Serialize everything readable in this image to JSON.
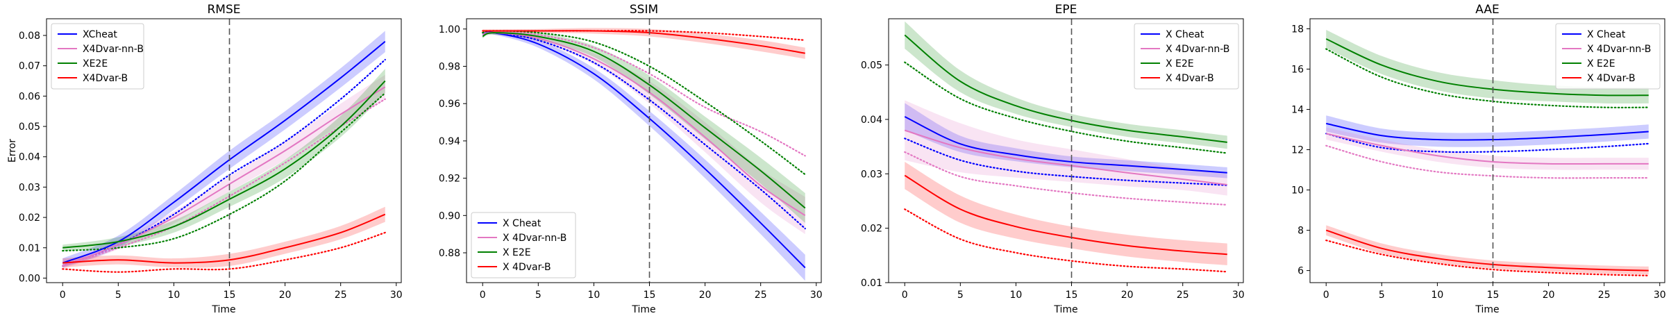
{
  "chart_data": [
    {
      "type": "line",
      "title": "RMSE",
      "xlabel": "Time",
      "ylabel": "Error",
      "xlim": [
        -1.45,
        30.45
      ],
      "ylim": [
        -0.0015,
        0.0855
      ],
      "xticks": [
        0,
        5,
        10,
        15,
        20,
        25,
        30
      ],
      "yticks": [
        0.0,
        0.01,
        0.02,
        0.03,
        0.04,
        0.05,
        0.06,
        0.07,
        0.08
      ],
      "tick_decimals": 2,
      "vline": 15,
      "legend_position": "upper-left",
      "x": [
        0,
        5,
        10,
        15,
        20,
        25,
        29
      ],
      "series": [
        {
          "name": "XCheat",
          "color": "#0000ff",
          "values": [
            0.005,
            0.012,
            0.025,
            0.039,
            0.052,
            0.066,
            0.078
          ],
          "band": [
            0.0015,
            0.002,
            0.0025,
            0.003,
            0.003,
            0.0032,
            0.0035
          ],
          "dotted": [
            0.004,
            0.011,
            0.021,
            0.034,
            0.045,
            0.059,
            0.072
          ]
        },
        {
          "name": "X4Dvar-nn-B",
          "color": "#e377c2",
          "values": [
            0.004,
            0.011,
            0.02,
            0.031,
            0.042,
            0.054,
            0.063
          ],
          "band": [
            0.001,
            0.0015,
            0.002,
            0.0025,
            0.003,
            0.0035,
            0.004
          ],
          "dotted": [
            0.004,
            0.01,
            0.017,
            0.027,
            0.038,
            0.05,
            0.059
          ]
        },
        {
          "name": "XE2E",
          "color": "#008000",
          "values": [
            0.01,
            0.012,
            0.017,
            0.026,
            0.036,
            0.05,
            0.065
          ],
          "band": [
            0.001,
            0.0015,
            0.002,
            0.0025,
            0.003,
            0.0035,
            0.004
          ],
          "dotted": [
            0.009,
            0.01,
            0.013,
            0.021,
            0.032,
            0.048,
            0.061
          ]
        },
        {
          "name": "X4Dvar-B",
          "color": "#ff0000",
          "values": [
            0.005,
            0.006,
            0.005,
            0.006,
            0.01,
            0.015,
            0.021
          ],
          "band": [
            0.0015,
            0.0015,
            0.0015,
            0.002,
            0.002,
            0.0022,
            0.0025
          ],
          "dotted": [
            0.003,
            0.002,
            0.003,
            0.003,
            0.006,
            0.01,
            0.015
          ]
        }
      ]
    },
    {
      "type": "line",
      "title": "SSIM",
      "xlabel": "Time",
      "ylabel": "",
      "xlim": [
        -1.45,
        30.45
      ],
      "ylim": [
        0.864,
        1.0055
      ],
      "xticks": [
        0,
        5,
        10,
        15,
        20,
        25,
        30
      ],
      "yticks": [
        0.88,
        0.9,
        0.92,
        0.94,
        0.96,
        0.98,
        1.0
      ],
      "tick_decimals": 2,
      "vline": 15,
      "legend_position": "lower-left",
      "x": [
        0,
        1,
        5,
        10,
        15,
        20,
        25,
        29
      ],
      "series": [
        {
          "name": "X Cheat",
          "color": "#0000ff",
          "values": [
            0.997,
            0.998,
            0.992,
            0.976,
            0.952,
            0.925,
            0.896,
            0.872
          ],
          "band": [
            0.001,
            0.001,
            0.002,
            0.003,
            0.004,
            0.005,
            0.006,
            0.007
          ],
          "dotted": [
            0.998,
            0.998,
            0.994,
            0.982,
            0.962,
            0.938,
            0.914,
            0.893
          ]
        },
        {
          "name": "X 4Dvar-nn-B",
          "color": "#e377c2",
          "values": [
            0.997,
            0.998,
            0.995,
            0.984,
            0.966,
            0.942,
            0.916,
            0.9
          ],
          "band": [
            0.001,
            0.001,
            0.002,
            0.003,
            0.006,
            0.008,
            0.009,
            0.01
          ],
          "dotted": [
            0.998,
            0.999,
            0.997,
            0.99,
            0.976,
            0.958,
            0.945,
            0.932
          ]
        },
        {
          "name": "X E2E",
          "color": "#008000",
          "values": [
            0.996,
            0.998,
            0.996,
            0.988,
            0.97,
            0.947,
            0.924,
            0.904
          ],
          "band": [
            0.001,
            0.001,
            0.002,
            0.003,
            0.005,
            0.006,
            0.007,
            0.008
          ],
          "dotted": [
            0.998,
            0.999,
            0.998,
            0.993,
            0.98,
            0.961,
            0.94,
            0.922
          ]
        },
        {
          "name": "X 4Dvar-B",
          "color": "#ff0000",
          "values": [
            0.999,
            0.999,
            0.999,
            0.999,
            0.998,
            0.995,
            0.991,
            0.987
          ],
          "band": [
            0.0008,
            0.0008,
            0.001,
            0.0015,
            0.002,
            0.0025,
            0.003,
            0.003
          ],
          "dotted": [
            0.999,
            0.999,
            0.999,
            0.999,
            0.999,
            0.998,
            0.996,
            0.994
          ]
        }
      ]
    },
    {
      "type": "line",
      "title": "EPE",
      "xlabel": "Time",
      "ylabel": "",
      "xlim": [
        -1.45,
        30.45
      ],
      "ylim": [
        0.01,
        0.0585
      ],
      "xticks": [
        0,
        5,
        10,
        15,
        20,
        25,
        30
      ],
      "yticks": [
        0.01,
        0.02,
        0.03,
        0.04,
        0.05
      ],
      "tick_decimals": 2,
      "vline": 15,
      "legend_position": "upper-right",
      "x": [
        0,
        5,
        10,
        15,
        20,
        25,
        29
      ],
      "series": [
        {
          "name": "X Cheat",
          "color": "#0000ff",
          "values": [
            0.0405,
            0.0355,
            0.0335,
            0.0322,
            0.0315,
            0.0308,
            0.0302
          ],
          "band": [
            0.0025,
            0.0015,
            0.0012,
            0.001,
            0.001,
            0.001,
            0.001
          ],
          "dotted": [
            0.0365,
            0.0325,
            0.0305,
            0.0295,
            0.0288,
            0.0283,
            0.0279
          ]
        },
        {
          "name": "X 4Dvar-nn-B",
          "color": "#e377c2",
          "values": [
            0.038,
            0.0348,
            0.0328,
            0.0315,
            0.0302,
            0.029,
            0.028
          ],
          "band": [
            0.0055,
            0.0045,
            0.0035,
            0.003,
            0.0025,
            0.002,
            0.002
          ],
          "dotted": [
            0.034,
            0.0295,
            0.0278,
            0.0265,
            0.0255,
            0.0248,
            0.0243
          ]
        },
        {
          "name": "X E2E",
          "color": "#008000",
          "values": [
            0.0555,
            0.047,
            0.0425,
            0.0398,
            0.038,
            0.0368,
            0.0358
          ],
          "band": [
            0.0025,
            0.002,
            0.0015,
            0.0012,
            0.0012,
            0.0012,
            0.0012
          ],
          "dotted": [
            0.0505,
            0.0438,
            0.0402,
            0.0378,
            0.036,
            0.0348,
            0.0338
          ]
        },
        {
          "name": "X 4Dvar-B",
          "color": "#ff0000",
          "values": [
            0.0297,
            0.0235,
            0.0203,
            0.0183,
            0.0168,
            0.0158,
            0.0152
          ],
          "band": [
            0.0025,
            0.0025,
            0.0022,
            0.002,
            0.002,
            0.002,
            0.002
          ],
          "dotted": [
            0.0235,
            0.018,
            0.0155,
            0.014,
            0.013,
            0.0125,
            0.012
          ]
        }
      ]
    },
    {
      "type": "line",
      "title": "AAE",
      "xlabel": "Time",
      "ylabel": "",
      "xlim": [
        -1.45,
        30.45
      ],
      "ylim": [
        5.4,
        18.5
      ],
      "xticks": [
        0,
        5,
        10,
        15,
        20,
        25,
        30
      ],
      "yticks": [
        6,
        8,
        10,
        12,
        14,
        16,
        18
      ],
      "tick_decimals": 0,
      "vline": 15,
      "legend_position": "upper-right",
      "x": [
        0,
        5,
        10,
        15,
        20,
        25,
        29
      ],
      "series": [
        {
          "name": "X Cheat",
          "color": "#0000ff",
          "values": [
            13.3,
            12.7,
            12.5,
            12.5,
            12.6,
            12.75,
            12.9
          ],
          "band": [
            0.4,
            0.35,
            0.35,
            0.35,
            0.35,
            0.35,
            0.35
          ],
          "dotted": [
            12.8,
            12.1,
            11.9,
            11.9,
            12.0,
            12.15,
            12.3
          ]
        },
        {
          "name": "X 4Dvar-nn-B",
          "color": "#e377c2",
          "values": [
            12.8,
            12.2,
            11.7,
            11.4,
            11.3,
            11.3,
            11.3
          ],
          "band": [
            0.3,
            0.3,
            0.3,
            0.3,
            0.3,
            0.3,
            0.3
          ],
          "dotted": [
            12.2,
            11.4,
            10.9,
            10.7,
            10.6,
            10.6,
            10.6
          ]
        },
        {
          "name": "X E2E",
          "color": "#008000",
          "values": [
            17.5,
            16.2,
            15.4,
            15.0,
            14.8,
            14.7,
            14.7
          ],
          "band": [
            0.45,
            0.45,
            0.45,
            0.45,
            0.4,
            0.4,
            0.4
          ],
          "dotted": [
            17.0,
            15.6,
            14.8,
            14.4,
            14.2,
            14.1,
            14.1
          ]
        },
        {
          "name": "X 4Dvar-B",
          "color": "#ff0000",
          "values": [
            8.0,
            7.1,
            6.6,
            6.3,
            6.15,
            6.05,
            6.0
          ],
          "band": [
            0.25,
            0.25,
            0.22,
            0.2,
            0.2,
            0.2,
            0.2
          ],
          "dotted": [
            7.5,
            6.8,
            6.35,
            6.05,
            5.9,
            5.8,
            5.75
          ]
        }
      ]
    }
  ]
}
